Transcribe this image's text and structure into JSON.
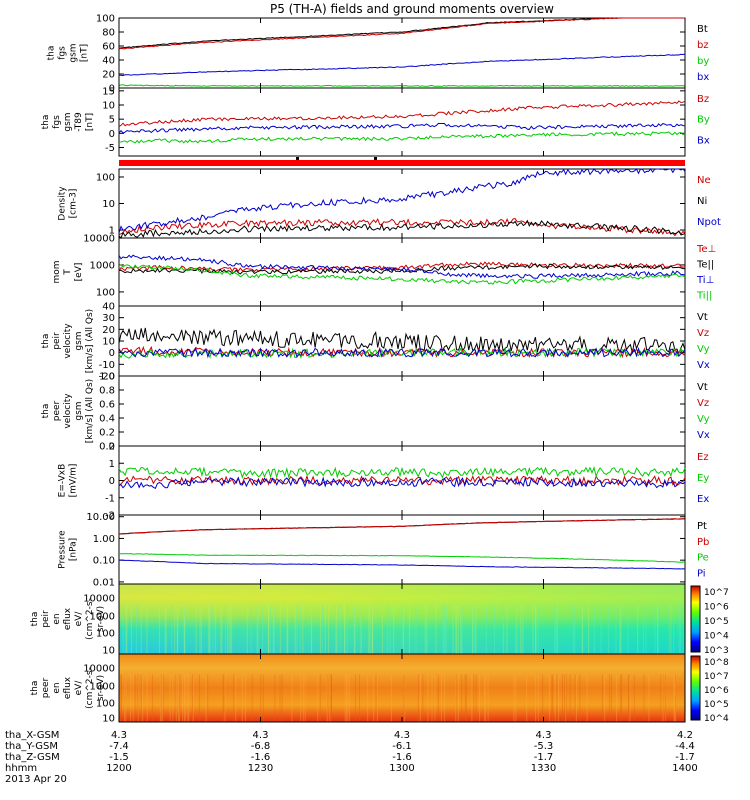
{
  "title": "P5 (TH-A) fields and ground moments overview",
  "date_label": "2013 Apr 20",
  "time_rows": [
    {
      "label": "tha_X-GSM",
      "values": [
        "4.3",
        "4.3",
        "4.3",
        "4.3",
        "4.2"
      ]
    },
    {
      "label": "tha_Y-GSM",
      "values": [
        "-7.4",
        "-6.8",
        "-6.1",
        "-5.3",
        "-4.4"
      ]
    },
    {
      "label": "tha_Z-GSM",
      "values": [
        "-1.5",
        "-1.6",
        "-1.6",
        "-1.7",
        "-1.7"
      ]
    },
    {
      "label": "hhmm",
      "values": [
        "1200",
        "1230",
        "1300",
        "1330",
        "1400"
      ]
    }
  ],
  "chart_data": [
    {
      "type": "line",
      "panel": "fgs",
      "ylabel": [
        "tha",
        "fgs",
        "gsm",
        "[nT]"
      ],
      "ylim": [
        0,
        100
      ],
      "yticks": [
        "100",
        "80",
        "60",
        "40",
        "20",
        "0"
      ],
      "x": [
        1200,
        1230,
        1300,
        1330,
        1400
      ],
      "series": [
        {
          "name": "Bt",
          "color": "#000000",
          "values": [
            57,
            67,
            80,
            93,
            104
          ]
        },
        {
          "name": "bz",
          "color": "#cc0000",
          "values": [
            56,
            65,
            78,
            92,
            104
          ]
        },
        {
          "name": "by",
          "color": "#00cc00",
          "values": [
            4,
            3,
            3,
            3,
            3
          ]
        },
        {
          "name": "bx",
          "color": "#0000cc",
          "values": [
            18,
            23,
            30,
            38,
            48
          ]
        }
      ]
    },
    {
      "type": "line",
      "panel": "fgs-t89",
      "ylabel": [
        "tha",
        "fgs",
        "gsm",
        "-T89",
        "[nT]"
      ],
      "ylim": [
        -8,
        16
      ],
      "yticks": [
        "15",
        "10",
        "5",
        "0",
        "-5"
      ],
      "x": [
        1200,
        1215,
        1230,
        1245,
        1300,
        1315,
        1330,
        1345,
        1400
      ],
      "series": [
        {
          "name": "Bz",
          "color": "#cc0000",
          "values": [
            3,
            4,
            5,
            5,
            6,
            7,
            8,
            9,
            11
          ]
        },
        {
          "name": "By",
          "color": "#00cc00",
          "values": [
            -3,
            -2.5,
            -3,
            -2,
            -2,
            -1,
            -1,
            -0.5,
            0
          ]
        },
        {
          "name": "Bx",
          "color": "#0000cc",
          "values": [
            0.5,
            1,
            1.5,
            2,
            2.5,
            3,
            2.5,
            2,
            3
          ]
        }
      ]
    },
    {
      "type": "line",
      "panel": "density",
      "ylabel": [
        "Density",
        "[cm-3]"
      ],
      "ylim": [
        0.5,
        200
      ],
      "log": true,
      "yticks": [
        "100",
        "10",
        "1"
      ],
      "x": [
        1200,
        1215,
        1230,
        1245,
        1300,
        1315,
        1330,
        1340,
        1350,
        1400
      ],
      "series": [
        {
          "name": "Ne",
          "color": "#cc0000",
          "values": [
            0.9,
            1.3,
            1.5,
            1.8,
            2,
            1.9,
            2,
            2.1,
            1.5,
            0.7
          ]
        },
        {
          "name": "Ni",
          "color": "#000000",
          "values": [
            0.6,
            0.8,
            0.9,
            1.1,
            1.3,
            1.4,
            1.6,
            1.8,
            1.7,
            0.8
          ]
        },
        {
          "name": "Npot",
          "color": "#0000cc",
          "values": [
            1,
            1.8,
            3,
            6,
            15,
            25,
            45,
            60,
            140,
            200
          ]
        }
      ]
    },
    {
      "type": "line",
      "panel": "temperature",
      "ylabel": [
        "mom",
        "T",
        "[eV]"
      ],
      "ylim": [
        30,
        10000
      ],
      "log": true,
      "yticks": [
        "10000",
        "1000",
        "100"
      ],
      "x": [
        1200,
        1215,
        1230,
        1245,
        1300,
        1315,
        1330,
        1345,
        1400
      ],
      "series": [
        {
          "name": "Te⊥",
          "color": "#cc0000",
          "values": [
            700,
            800,
            700,
            650,
            800,
            1000,
            1100,
            1000,
            900
          ]
        },
        {
          "name": "Te||",
          "color": "#000000",
          "values": [
            600,
            650,
            600,
            550,
            600,
            750,
            800,
            900,
            800
          ]
        },
        {
          "name": "Ti⊥",
          "color": "#0000cc",
          "values": [
            2000,
            1800,
            1500,
            900,
            700,
            450,
            400,
            380,
            500
          ]
        },
        {
          "name": "Ti||",
          "color": "#00cc00",
          "values": [
            900,
            800,
            650,
            400,
            300,
            250,
            220,
            250,
            400
          ]
        }
      ]
    },
    {
      "type": "line",
      "panel": "peir-velocity",
      "ylabel": [
        "tha",
        "peir",
        "velocity",
        "gsm",
        "[km/s] (All Qs)"
      ],
      "ylim": [
        -20,
        40
      ],
      "yticks": [
        "40",
        "30",
        "20",
        "10",
        "0",
        "-10",
        "-20"
      ],
      "x": [
        1200,
        1215,
        1230,
        1245,
        1300,
        1315,
        1330,
        1345,
        1400
      ],
      "series": [
        {
          "name": "Vt",
          "color": "#000000",
          "values": [
            15,
            14,
            13,
            12,
            10,
            8,
            7,
            7,
            6
          ]
        },
        {
          "name": "Vz",
          "color": "#cc0000",
          "values": [
            2,
            1,
            1,
            0,
            0,
            0,
            0,
            0,
            0
          ]
        },
        {
          "name": "Vy",
          "color": "#00cc00",
          "values": [
            -2,
            -1,
            -1,
            -1,
            0,
            0,
            0,
            0,
            0
          ]
        },
        {
          "name": "Vx",
          "color": "#0000cc",
          "values": [
            0,
            0,
            0,
            0,
            0,
            0,
            0,
            0,
            0
          ]
        }
      ]
    },
    {
      "type": "line",
      "panel": "peer-velocity",
      "ylabel": [
        "tha",
        "peer",
        "velocity",
        "gsm",
        "[km/s] (All Qs)"
      ],
      "ylim": [
        0,
        1
      ],
      "yticks": [
        "1.0",
        "0.8",
        "0.6",
        "0.4",
        "0.2",
        "0.0"
      ],
      "series": [
        {
          "name": "Vt",
          "color": "#000000",
          "values": []
        },
        {
          "name": "Vz",
          "color": "#cc0000",
          "values": []
        },
        {
          "name": "Vy",
          "color": "#00cc00",
          "values": []
        },
        {
          "name": "Vx",
          "color": "#0000cc",
          "values": []
        }
      ]
    },
    {
      "type": "line",
      "panel": "efield",
      "ylabel": [
        "E=-VxB",
        "[mV/m]"
      ],
      "ylim": [
        -2,
        2
      ],
      "yticks": [
        "2",
        "1",
        "0",
        "-1",
        "-2"
      ],
      "x": [
        1200,
        1215,
        1230,
        1245,
        1300,
        1315,
        1330,
        1345,
        1400
      ],
      "series": [
        {
          "name": "Ez",
          "color": "#cc0000",
          "values": [
            0,
            0,
            0,
            0,
            0,
            0,
            0,
            0,
            0
          ]
        },
        {
          "name": "Ey",
          "color": "#00cc00",
          "values": [
            0.5,
            0.6,
            0.5,
            0.4,
            0.5,
            0.4,
            0.5,
            0.5,
            0.5
          ]
        },
        {
          "name": "Ex",
          "color": "#0000cc",
          "values": [
            -0.2,
            -0.2,
            -0.1,
            -0.1,
            -0.1,
            -0.1,
            -0.1,
            -0.1,
            -0.2
          ]
        }
      ]
    },
    {
      "type": "line",
      "panel": "pressure",
      "ylabel": [
        "Pressure",
        "[nPa]"
      ],
      "ylim": [
        0.008,
        12
      ],
      "log": true,
      "yticks": [
        "10.00",
        "1.00",
        "0.10",
        "0.01"
      ],
      "x": [
        1200,
        1230,
        1300,
        1330,
        1400
      ],
      "series": [
        {
          "name": "Pt",
          "color": "#000000",
          "values": [
            1.6,
            2.5,
            3.6,
            5.3,
            8
          ]
        },
        {
          "name": "Pb",
          "color": "#cc0000",
          "values": [
            1.6,
            2.5,
            3.6,
            5.3,
            8
          ]
        },
        {
          "name": "Pe",
          "color": "#00cc00",
          "values": [
            0.2,
            0.17,
            0.16,
            0.14,
            0.08
          ]
        },
        {
          "name": "Pi",
          "color": "#0000cc",
          "values": [
            0.1,
            0.07,
            0.06,
            0.05,
            0.04
          ]
        }
      ]
    },
    {
      "type": "heatmap",
      "panel": "peir-eflux",
      "ylabel": [
        "tha",
        "peir",
        "en",
        "eflux",
        "eV/",
        "(cm^2-s-",
        "sr-eV)"
      ],
      "yticks": [
        "10000",
        "1000",
        "100",
        "10"
      ],
      "colorbar": [
        "10^7",
        "10^6",
        "10^5",
        "10^4",
        "10^3"
      ]
    },
    {
      "type": "heatmap",
      "panel": "peer-eflux",
      "ylabel": [
        "tha",
        "peer",
        "en",
        "eflux",
        "eV/",
        "(cm^2-s-",
        "sr-eV)"
      ],
      "yticks": [
        "10000",
        "1000",
        "100",
        "10"
      ],
      "colorbar": [
        "10^8",
        "10^7",
        "10^6",
        "10^5",
        "10^4"
      ]
    }
  ]
}
